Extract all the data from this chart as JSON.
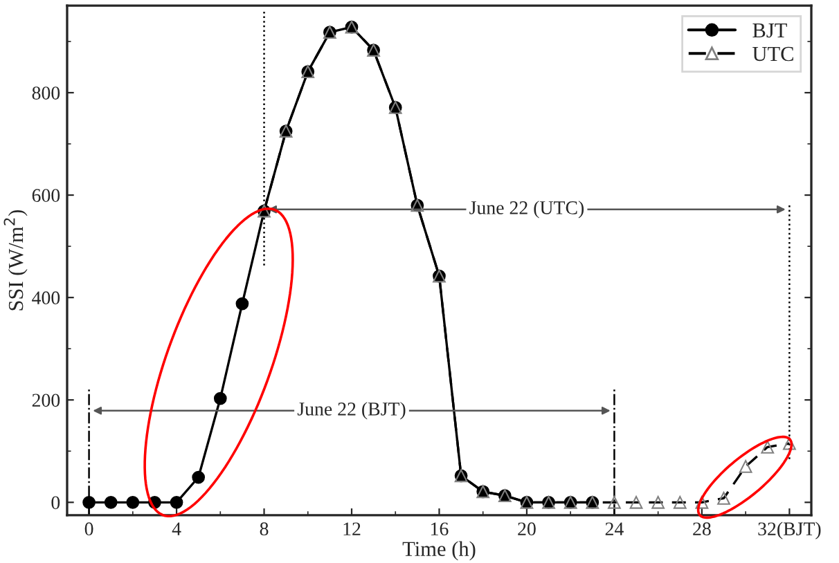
{
  "chart_data": {
    "type": "line",
    "xlabel": "Time (h)",
    "ylabel": "SSI (W/m$^{2}$)",
    "series": [
      {
        "name": "BJT",
        "color": "#000000",
        "marker": "circle",
        "line_style": "solid",
        "x": [
          0,
          1,
          2,
          3,
          4,
          5,
          6,
          7,
          8,
          9,
          10,
          11,
          12,
          13,
          14,
          15,
          16,
          17,
          18,
          19,
          20,
          21,
          22,
          23
        ],
        "values": [
          0,
          0,
          0,
          0,
          0,
          49,
          203,
          388,
          569,
          725,
          841,
          918,
          928,
          883,
          771,
          580,
          442,
          52,
          21,
          13,
          0,
          0,
          0,
          0
        ]
      },
      {
        "name": "UTC",
        "color": "#808080",
        "marker": "triangle",
        "line_style": "dashed",
        "x": [
          8,
          9,
          10,
          11,
          12,
          13,
          14,
          15,
          16,
          17,
          18,
          19,
          20,
          21,
          22,
          23,
          24,
          25,
          26,
          27,
          28,
          29,
          30,
          31,
          32
        ],
        "values": [
          569,
          725,
          841,
          918,
          928,
          883,
          771,
          580,
          442,
          52,
          21,
          13,
          0,
          0,
          0,
          0,
          0,
          0,
          0,
          0,
          0,
          8,
          70,
          108,
          115
        ]
      }
    ],
    "ref_lines": [
      {
        "axis": "x",
        "value": 0,
        "line_style": "dashdot",
        "color": "#000000"
      },
      {
        "axis": "x",
        "value": 24,
        "line_style": "dashdot",
        "color": "#000000"
      },
      {
        "axis": "x",
        "value": 8,
        "line_style": "dotted",
        "color": "#000000"
      },
      {
        "axis": "x",
        "value": 32,
        "line_style": "dotted",
        "color": "#000000"
      }
    ],
    "annotations": [
      "June 22 (BJT)",
      "June 22 (UTC)"
    ],
    "xlim": [
      -1,
      33
    ],
    "ylim": [
      -25,
      970
    ],
    "xticks": [
      0,
      4,
      8,
      12,
      16,
      20,
      24,
      28,
      {
        "value": 32,
        "label": "32(BJT)"
      }
    ],
    "yticks": [
      0,
      200,
      400,
      600,
      800
    ],
    "grid": false,
    "legend": "top right"
  }
}
